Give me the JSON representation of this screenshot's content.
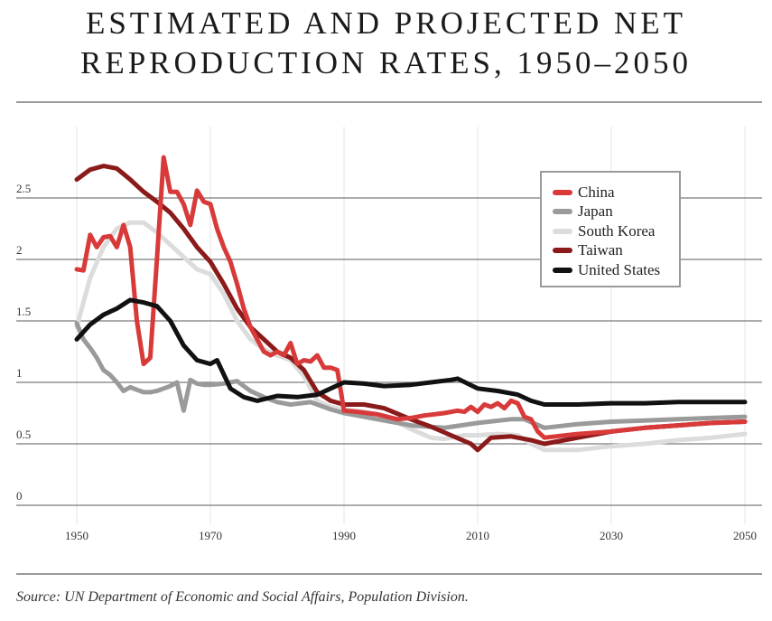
{
  "title_lines": [
    "ESTIMATED AND PROJECTED NET",
    "REPRODUCTION RATES, 1950–2050"
  ],
  "source": "Source: UN Department of Economic and Social Affairs, Population Division.",
  "chart_data": {
    "type": "line",
    "title": "Estimated and Projected Net Reproduction Rates, 1950–2050",
    "xlabel": "",
    "ylabel": "",
    "xlim": [
      1950,
      2050
    ],
    "ylim": [
      0,
      2.9
    ],
    "x_ticks": [
      1950,
      1970,
      1990,
      2010,
      2030,
      2050
    ],
    "y_ticks": [
      0,
      0.5,
      1,
      1.5,
      2,
      2.5
    ],
    "y_tick_labels": [
      "0",
      "0.5",
      "1",
      "1.5",
      "2",
      "2.5"
    ],
    "grid": "horizontal",
    "legend_position": "top-right",
    "series": [
      {
        "name": "China",
        "color": "#d83a3a",
        "x": [
          1950,
          1951,
          1952,
          1953,
          1954,
          1955,
          1956,
          1957,
          1958,
          1959,
          1960,
          1961,
          1962,
          1963,
          1964,
          1965,
          1966,
          1967,
          1968,
          1969,
          1970,
          1971,
          1972,
          1973,
          1974,
          1975,
          1976,
          1977,
          1978,
          1979,
          1980,
          1981,
          1982,
          1983,
          1984,
          1985,
          1986,
          1987,
          1988,
          1989,
          1990,
          1992,
          1995,
          1998,
          2000,
          2002,
          2005,
          2007,
          2008,
          2009,
          2010,
          2011,
          2012,
          2013,
          2014,
          2015,
          2016,
          2017,
          2018,
          2019,
          2020,
          2025,
          2030,
          2035,
          2040,
          2045,
          2050
        ],
        "values": [
          1.92,
          1.91,
          2.2,
          2.1,
          2.18,
          2.19,
          2.1,
          2.28,
          2.1,
          1.5,
          1.15,
          1.2,
          2.0,
          2.83,
          2.55,
          2.55,
          2.45,
          2.28,
          2.56,
          2.47,
          2.45,
          2.25,
          2.1,
          1.98,
          1.8,
          1.6,
          1.45,
          1.35,
          1.25,
          1.22,
          1.25,
          1.22,
          1.32,
          1.15,
          1.18,
          1.17,
          1.22,
          1.12,
          1.12,
          1.1,
          0.77,
          0.76,
          0.74,
          0.7,
          0.71,
          0.73,
          0.75,
          0.77,
          0.76,
          0.8,
          0.76,
          0.82,
          0.8,
          0.83,
          0.79,
          0.85,
          0.83,
          0.72,
          0.7,
          0.6,
          0.55,
          0.58,
          0.6,
          0.63,
          0.65,
          0.67,
          0.68
        ]
      },
      {
        "name": "Japan",
        "color": "#9a9a9a",
        "x": [
          1950,
          1951,
          1952,
          1953,
          1954,
          1955,
          1956,
          1957,
          1958,
          1959,
          1960,
          1961,
          1962,
          1963,
          1964,
          1965,
          1966,
          1967,
          1968,
          1969,
          1970,
          1972,
          1974,
          1975,
          1976,
          1978,
          1980,
          1982,
          1985,
          1988,
          1990,
          1995,
          2000,
          2005,
          2010,
          2015,
          2017,
          2020,
          2025,
          2030,
          2035,
          2040,
          2045,
          2050
        ],
        "values": [
          1.48,
          1.35,
          1.28,
          1.2,
          1.1,
          1.06,
          1.0,
          0.93,
          0.96,
          0.94,
          0.92,
          0.92,
          0.93,
          0.95,
          0.97,
          1.0,
          0.77,
          1.02,
          0.99,
          0.98,
          0.98,
          0.99,
          1.01,
          0.97,
          0.93,
          0.88,
          0.84,
          0.82,
          0.84,
          0.78,
          0.75,
          0.7,
          0.65,
          0.63,
          0.67,
          0.7,
          0.7,
          0.63,
          0.66,
          0.68,
          0.69,
          0.7,
          0.71,
          0.72
        ]
      },
      {
        "name": "South Korea",
        "color": "#dcdcdc",
        "x": [
          1950,
          1952,
          1954,
          1956,
          1958,
          1960,
          1962,
          1964,
          1966,
          1968,
          1970,
          1972,
          1974,
          1976,
          1978,
          1980,
          1982,
          1984,
          1986,
          1988,
          1990,
          1993,
          1996,
          2000,
          2003,
          2005,
          2008,
          2010,
          2013,
          2016,
          2018,
          2020,
          2025,
          2030,
          2035,
          2040,
          2045,
          2050
        ],
        "values": [
          1.45,
          1.85,
          2.1,
          2.25,
          2.3,
          2.3,
          2.22,
          2.12,
          2.02,
          1.92,
          1.88,
          1.72,
          1.5,
          1.35,
          1.27,
          1.22,
          1.18,
          1.05,
          0.85,
          0.8,
          0.78,
          0.76,
          0.73,
          0.62,
          0.55,
          0.54,
          0.57,
          0.57,
          0.58,
          0.57,
          0.5,
          0.45,
          0.45,
          0.48,
          0.5,
          0.53,
          0.55,
          0.58
        ]
      },
      {
        "name": "Taiwan",
        "color": "#8b1a1a",
        "x": [
          1950,
          1952,
          1954,
          1956,
          1958,
          1960,
          1962,
          1964,
          1966,
          1968,
          1970,
          1972,
          1974,
          1976,
          1978,
          1980,
          1982,
          1984,
          1986,
          1988,
          1990,
          1993,
          1996,
          2000,
          2003,
          2006,
          2009,
          2010,
          2012,
          2015,
          2018,
          2020,
          2025,
          2030,
          2035,
          2040,
          2045,
          2050
        ],
        "values": [
          2.65,
          2.73,
          2.76,
          2.74,
          2.65,
          2.55,
          2.47,
          2.38,
          2.25,
          2.1,
          1.98,
          1.8,
          1.6,
          1.45,
          1.35,
          1.25,
          1.2,
          1.1,
          0.92,
          0.85,
          0.82,
          0.82,
          0.79,
          0.7,
          0.64,
          0.57,
          0.5,
          0.45,
          0.55,
          0.56,
          0.53,
          0.5,
          0.55,
          0.6,
          0.63,
          0.65,
          0.67,
          0.68
        ]
      },
      {
        "name": "United States",
        "color": "#111111",
        "x": [
          1950,
          1952,
          1954,
          1956,
          1958,
          1960,
          1962,
          1964,
          1966,
          1968,
          1970,
          1971,
          1973,
          1975,
          1977,
          1980,
          1983,
          1986,
          1988,
          1990,
          1993,
          1996,
          2000,
          2003,
          2006,
          2007,
          2010,
          2013,
          2016,
          2018,
          2020,
          2025,
          2030,
          2035,
          2040,
          2045,
          2050
        ],
        "values": [
          1.35,
          1.47,
          1.55,
          1.6,
          1.67,
          1.65,
          1.62,
          1.5,
          1.3,
          1.18,
          1.15,
          1.18,
          0.95,
          0.88,
          0.85,
          0.89,
          0.88,
          0.9,
          0.95,
          1.0,
          0.99,
          0.97,
          0.98,
          1.0,
          1.02,
          1.03,
          0.95,
          0.93,
          0.9,
          0.85,
          0.82,
          0.82,
          0.83,
          0.83,
          0.84,
          0.84,
          0.84
        ]
      }
    ]
  }
}
